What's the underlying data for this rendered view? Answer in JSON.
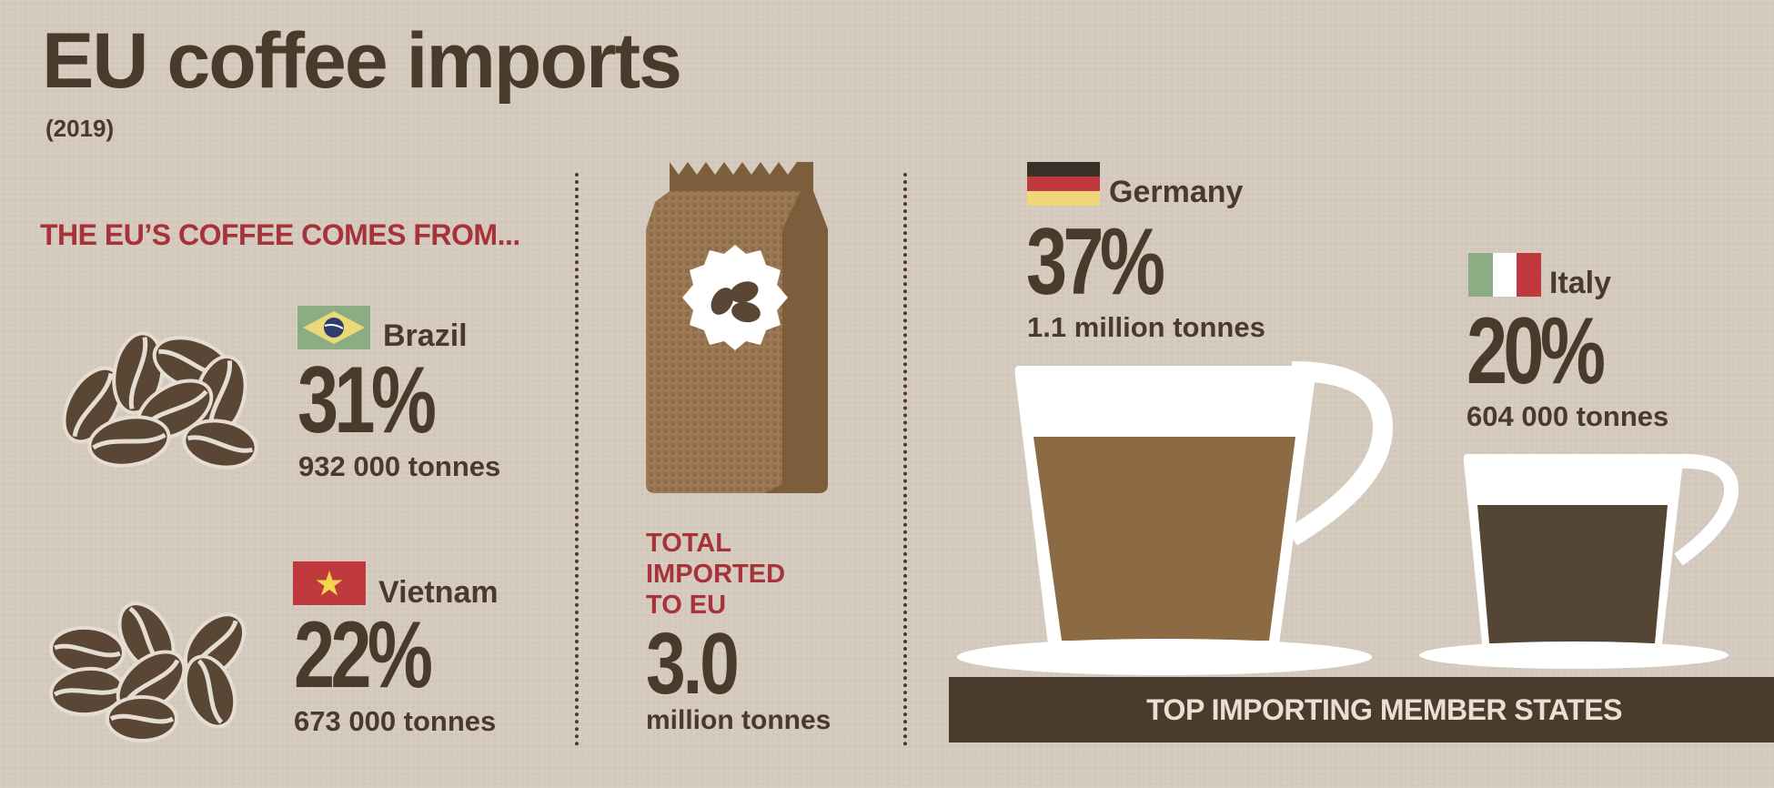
{
  "title": "EU coffee imports",
  "year": "(2019)",
  "sources": {
    "heading": "THE EU’S COFFEE COMES FROM...",
    "items": [
      {
        "country": "Brazil",
        "share": "31%",
        "tonnes": "932 000 tonnes",
        "flag_icon": "brazil-flag-icon"
      },
      {
        "country": "Vietnam",
        "share": "22%",
        "tonnes": "673 000 tonnes",
        "flag_icon": "vietnam-flag-icon"
      }
    ]
  },
  "total": {
    "label_lines": [
      "TOTAL",
      "IMPORTED",
      "TO EU"
    ],
    "value": "3.0",
    "unit": "million tonnes"
  },
  "importers": {
    "banner": "TOP IMPORTING MEMBER STATES",
    "items": [
      {
        "country": "Germany",
        "share": "37%",
        "tonnes": "1.1 million tonnes",
        "flag_icon": "germany-flag-icon"
      },
      {
        "country": "Italy",
        "share": "20%",
        "tonnes": "604 000 tonnes",
        "flag_icon": "italy-flag-icon"
      }
    ]
  },
  "colors": {
    "background": "#d2c7ba",
    "text_dark": "#4a3a2c",
    "accent_red": "#a8323a",
    "bag_brown": "#8a6a45",
    "latte": "#8b6a44",
    "espresso": "#544535",
    "cup_white": "#ffffff"
  }
}
